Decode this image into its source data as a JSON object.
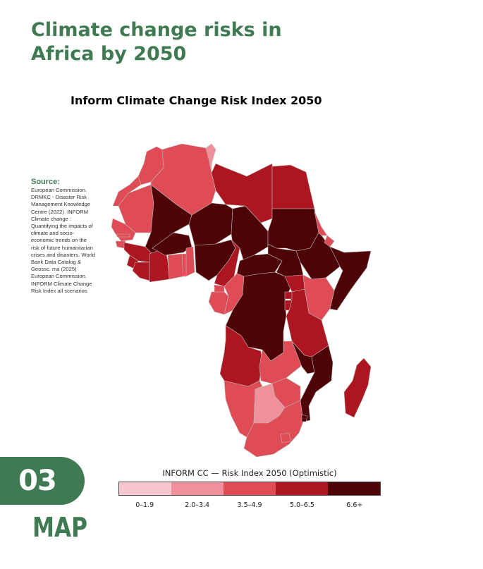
{
  "page_title": "Climate change risks in Africa by 2050",
  "map_title": "Inform Climate Change Risk Index 2050",
  "source": {
    "heading": "Source:",
    "text": "European Commission. DRMKC - Disaster Risk Management Knowledge Centre (2022). INFORM Climate change : Quantifying the impacts of climate and socio-economic trends on the risk of future humanitarian crises and disasters. World Bank Data Catalog & Geossc. ma (2025) European Commission. INFORM Climate Change Risk Index all scenarios"
  },
  "legend": {
    "title": "INFORM CC — Risk Index 2050 (Optimistic)",
    "classes": [
      {
        "label": "0–1.9",
        "color": "#f8c6cf"
      },
      {
        "label": "2.0–3.4",
        "color": "#f0909a"
      },
      {
        "label": "3.5–4.9",
        "color": "#e04c56"
      },
      {
        "label": "5.0–6.5",
        "color": "#ad1520"
      },
      {
        "label": "6.6+",
        "color": "#4e0307"
      }
    ]
  },
  "regions": [
    {
      "name": "Morocco",
      "class": 2
    },
    {
      "name": "Algeria",
      "class": 2
    },
    {
      "name": "Tunisia",
      "class": 1
    },
    {
      "name": "Libya",
      "class": 3
    },
    {
      "name": "Egypt",
      "class": 3
    },
    {
      "name": "Western Sahara",
      "class": 2
    },
    {
      "name": "Mauritania",
      "class": 2
    },
    {
      "name": "Mali",
      "class": 4
    },
    {
      "name": "Niger",
      "class": 4
    },
    {
      "name": "Chad",
      "class": 4
    },
    {
      "name": "Sudan",
      "class": 4
    },
    {
      "name": "South Sudan",
      "class": 4
    },
    {
      "name": "Ethiopia",
      "class": 4
    },
    {
      "name": "Somalia",
      "class": 4
    },
    {
      "name": "Eritrea",
      "class": 2
    },
    {
      "name": "Djibouti",
      "class": 2
    },
    {
      "name": "Senegal",
      "class": 2
    },
    {
      "name": "Gambia",
      "class": 2
    },
    {
      "name": "Guinea-Bissau",
      "class": 2
    },
    {
      "name": "Guinea",
      "class": 3
    },
    {
      "name": "Sierra Leone",
      "class": 3
    },
    {
      "name": "Liberia",
      "class": 3
    },
    {
      "name": "Cote d'Ivoire",
      "class": 3
    },
    {
      "name": "Burkina Faso",
      "class": 4
    },
    {
      "name": "Ghana",
      "class": 2
    },
    {
      "name": "Togo",
      "class": 2
    },
    {
      "name": "Benin",
      "class": 2
    },
    {
      "name": "Nigeria",
      "class": 4
    },
    {
      "name": "Cameroon",
      "class": 3
    },
    {
      "name": "Central African Republic",
      "class": 4
    },
    {
      "name": "Equatorial Guinea",
      "class": 2
    },
    {
      "name": "Gabon",
      "class": 2
    },
    {
      "name": "Republic of the Congo",
      "class": 2
    },
    {
      "name": "DR Congo",
      "class": 4
    },
    {
      "name": "Uganda",
      "class": 3
    },
    {
      "name": "Kenya",
      "class": 2
    },
    {
      "name": "Rwanda",
      "class": 3
    },
    {
      "name": "Burundi",
      "class": 3
    },
    {
      "name": "Tanzania",
      "class": 3
    },
    {
      "name": "Angola",
      "class": 3
    },
    {
      "name": "Zambia",
      "class": 2
    },
    {
      "name": "Malawi",
      "class": 4
    },
    {
      "name": "Mozambique",
      "class": 4
    },
    {
      "name": "Zimbabwe",
      "class": 2
    },
    {
      "name": "Namibia",
      "class": 2
    },
    {
      "name": "Botswana",
      "class": 1
    },
    {
      "name": "South Africa",
      "class": 2
    },
    {
      "name": "Lesotho",
      "class": 2
    },
    {
      "name": "Eswatini",
      "class": 4
    },
    {
      "name": "Madagascar",
      "class": 3
    }
  ],
  "section": {
    "number": "03",
    "label": "MAP"
  }
}
